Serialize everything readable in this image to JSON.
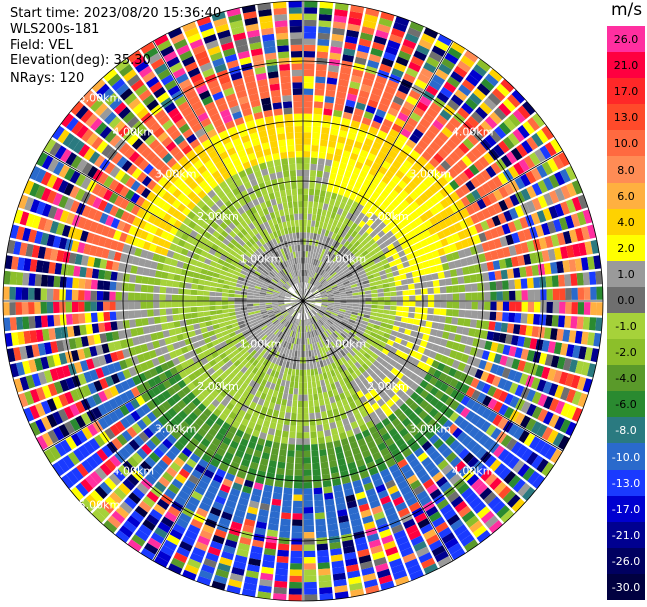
{
  "header": {
    "start_time": "Start time: 2023/08/20 15:36:40",
    "instrument": "WLS200s-181",
    "field": "Field: VEL",
    "elevation": "Elevation(deg): 35.30",
    "nrays": "NRays: 120"
  },
  "colorbar": {
    "unit": "m/s",
    "levels": [
      {
        "label": "26.0",
        "color": "#ff2fa0"
      },
      {
        "label": "21.0",
        "color": "#ff0040"
      },
      {
        "label": "17.0",
        "color": "#ff2828"
      },
      {
        "label": "13.0",
        "color": "#ff4a2a"
      },
      {
        "label": "10.0",
        "color": "#ff6a40"
      },
      {
        "label": "8.0",
        "color": "#ff8c55"
      },
      {
        "label": "6.0",
        "color": "#ffb040"
      },
      {
        "label": "4.0",
        "color": "#ffd200"
      },
      {
        "label": "2.0",
        "color": "#ffff00"
      },
      {
        "label": "1.0",
        "color": "#9a9a9a"
      },
      {
        "label": "0.0",
        "color": "#6f6f6f"
      },
      {
        "label": "-1.0",
        "color": "#a6d23a"
      },
      {
        "label": "-2.0",
        "color": "#8cbf2a"
      },
      {
        "label": "-4.0",
        "color": "#5a9a2a"
      },
      {
        "label": "-6.0",
        "color": "#2a8a30"
      },
      {
        "label": "-8.0",
        "color": "#2a7a80"
      },
      {
        "label": "-10.0",
        "color": "#2a6acc"
      },
      {
        "label": "-13.0",
        "color": "#1a3aff"
      },
      {
        "label": "-17.0",
        "color": "#0000d0"
      },
      {
        "label": "-21.0",
        "color": "#000090"
      },
      {
        "label": "-26.0",
        "color": "#000060"
      },
      {
        "label": "-30.0",
        "color": "#000040"
      }
    ]
  },
  "chart_data": {
    "type": "heatmap",
    "field": "VEL",
    "rays": 120,
    "range_rings_km": [
      "1.00km",
      "2.00km",
      "3.00km",
      "4.00km",
      "5.00km"
    ],
    "range_labels": [
      {
        "text": "1.00km"
      },
      {
        "text": "1.00km"
      },
      {
        "text": "1.00km"
      },
      {
        "text": "1.00km"
      },
      {
        "text": "2.00km"
      },
      {
        "text": "2.00km"
      },
      {
        "text": "2.00km"
      },
      {
        "text": "2.00km"
      },
      {
        "text": "3.00km"
      },
      {
        "text": "3.00km"
      },
      {
        "text": "3.00km"
      },
      {
        "text": "3.00km"
      },
      {
        "text": "4.00km"
      },
      {
        "text": "4.00km"
      },
      {
        "text": "4.00km"
      },
      {
        "text": "4.00km"
      },
      {
        "text": "5.00km"
      },
      {
        "text": "5.00km"
      }
    ],
    "grid": true,
    "colorbar_range_ms": [
      -30,
      26
    ]
  }
}
